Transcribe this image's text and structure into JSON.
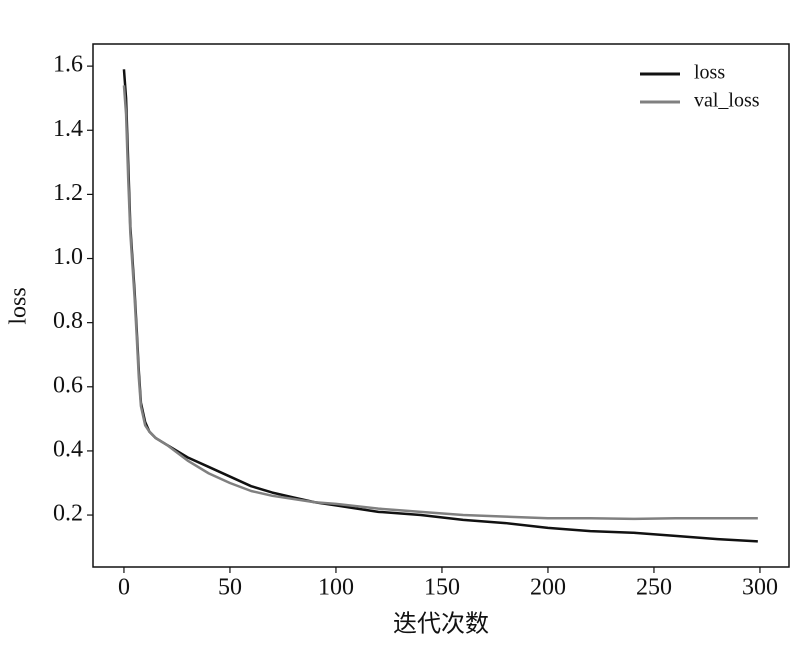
{
  "chart_data": {
    "type": "line",
    "xlabel": "迭代次数",
    "ylabel": "loss",
    "xlim": [
      -14.6,
      313.7
    ],
    "ylim": [
      0.038,
      1.669
    ],
    "xticks": [
      0,
      50,
      100,
      150,
      200,
      250,
      300
    ],
    "yticks": [
      0.2,
      0.4,
      0.6,
      0.8,
      {
        "value": 1,
        "label": "1.0"
      },
      1.2,
      1.4,
      1.6
    ],
    "grid": false,
    "legend": "upper right",
    "x": [
      0,
      1,
      2,
      3,
      4,
      5,
      6,
      7,
      8,
      10,
      12,
      15,
      20,
      25,
      30,
      40,
      50,
      60,
      70,
      80,
      90,
      100,
      120,
      140,
      160,
      180,
      200,
      220,
      240,
      260,
      280,
      299
    ],
    "series": [
      {
        "name": "loss",
        "color": "#111111",
        "values": [
          1.59,
          1.5,
          1.3,
          1.1,
          1.0,
          0.9,
          0.78,
          0.65,
          0.55,
          0.49,
          0.46,
          0.44,
          0.42,
          0.4,
          0.38,
          0.35,
          0.32,
          0.29,
          0.27,
          0.255,
          0.24,
          0.23,
          0.21,
          0.2,
          0.185,
          0.175,
          0.16,
          0.15,
          0.145,
          0.135,
          0.125,
          0.118
        ]
      },
      {
        "name": "val_loss",
        "color": "#808080",
        "values": [
          1.54,
          1.45,
          1.25,
          1.08,
          0.98,
          0.88,
          0.76,
          0.63,
          0.54,
          0.48,
          0.46,
          0.44,
          0.42,
          0.395,
          0.37,
          0.33,
          0.3,
          0.275,
          0.26,
          0.25,
          0.24,
          0.235,
          0.22,
          0.21,
          0.2,
          0.195,
          0.19,
          0.19,
          0.188,
          0.19,
          0.19,
          0.19
        ]
      }
    ]
  }
}
